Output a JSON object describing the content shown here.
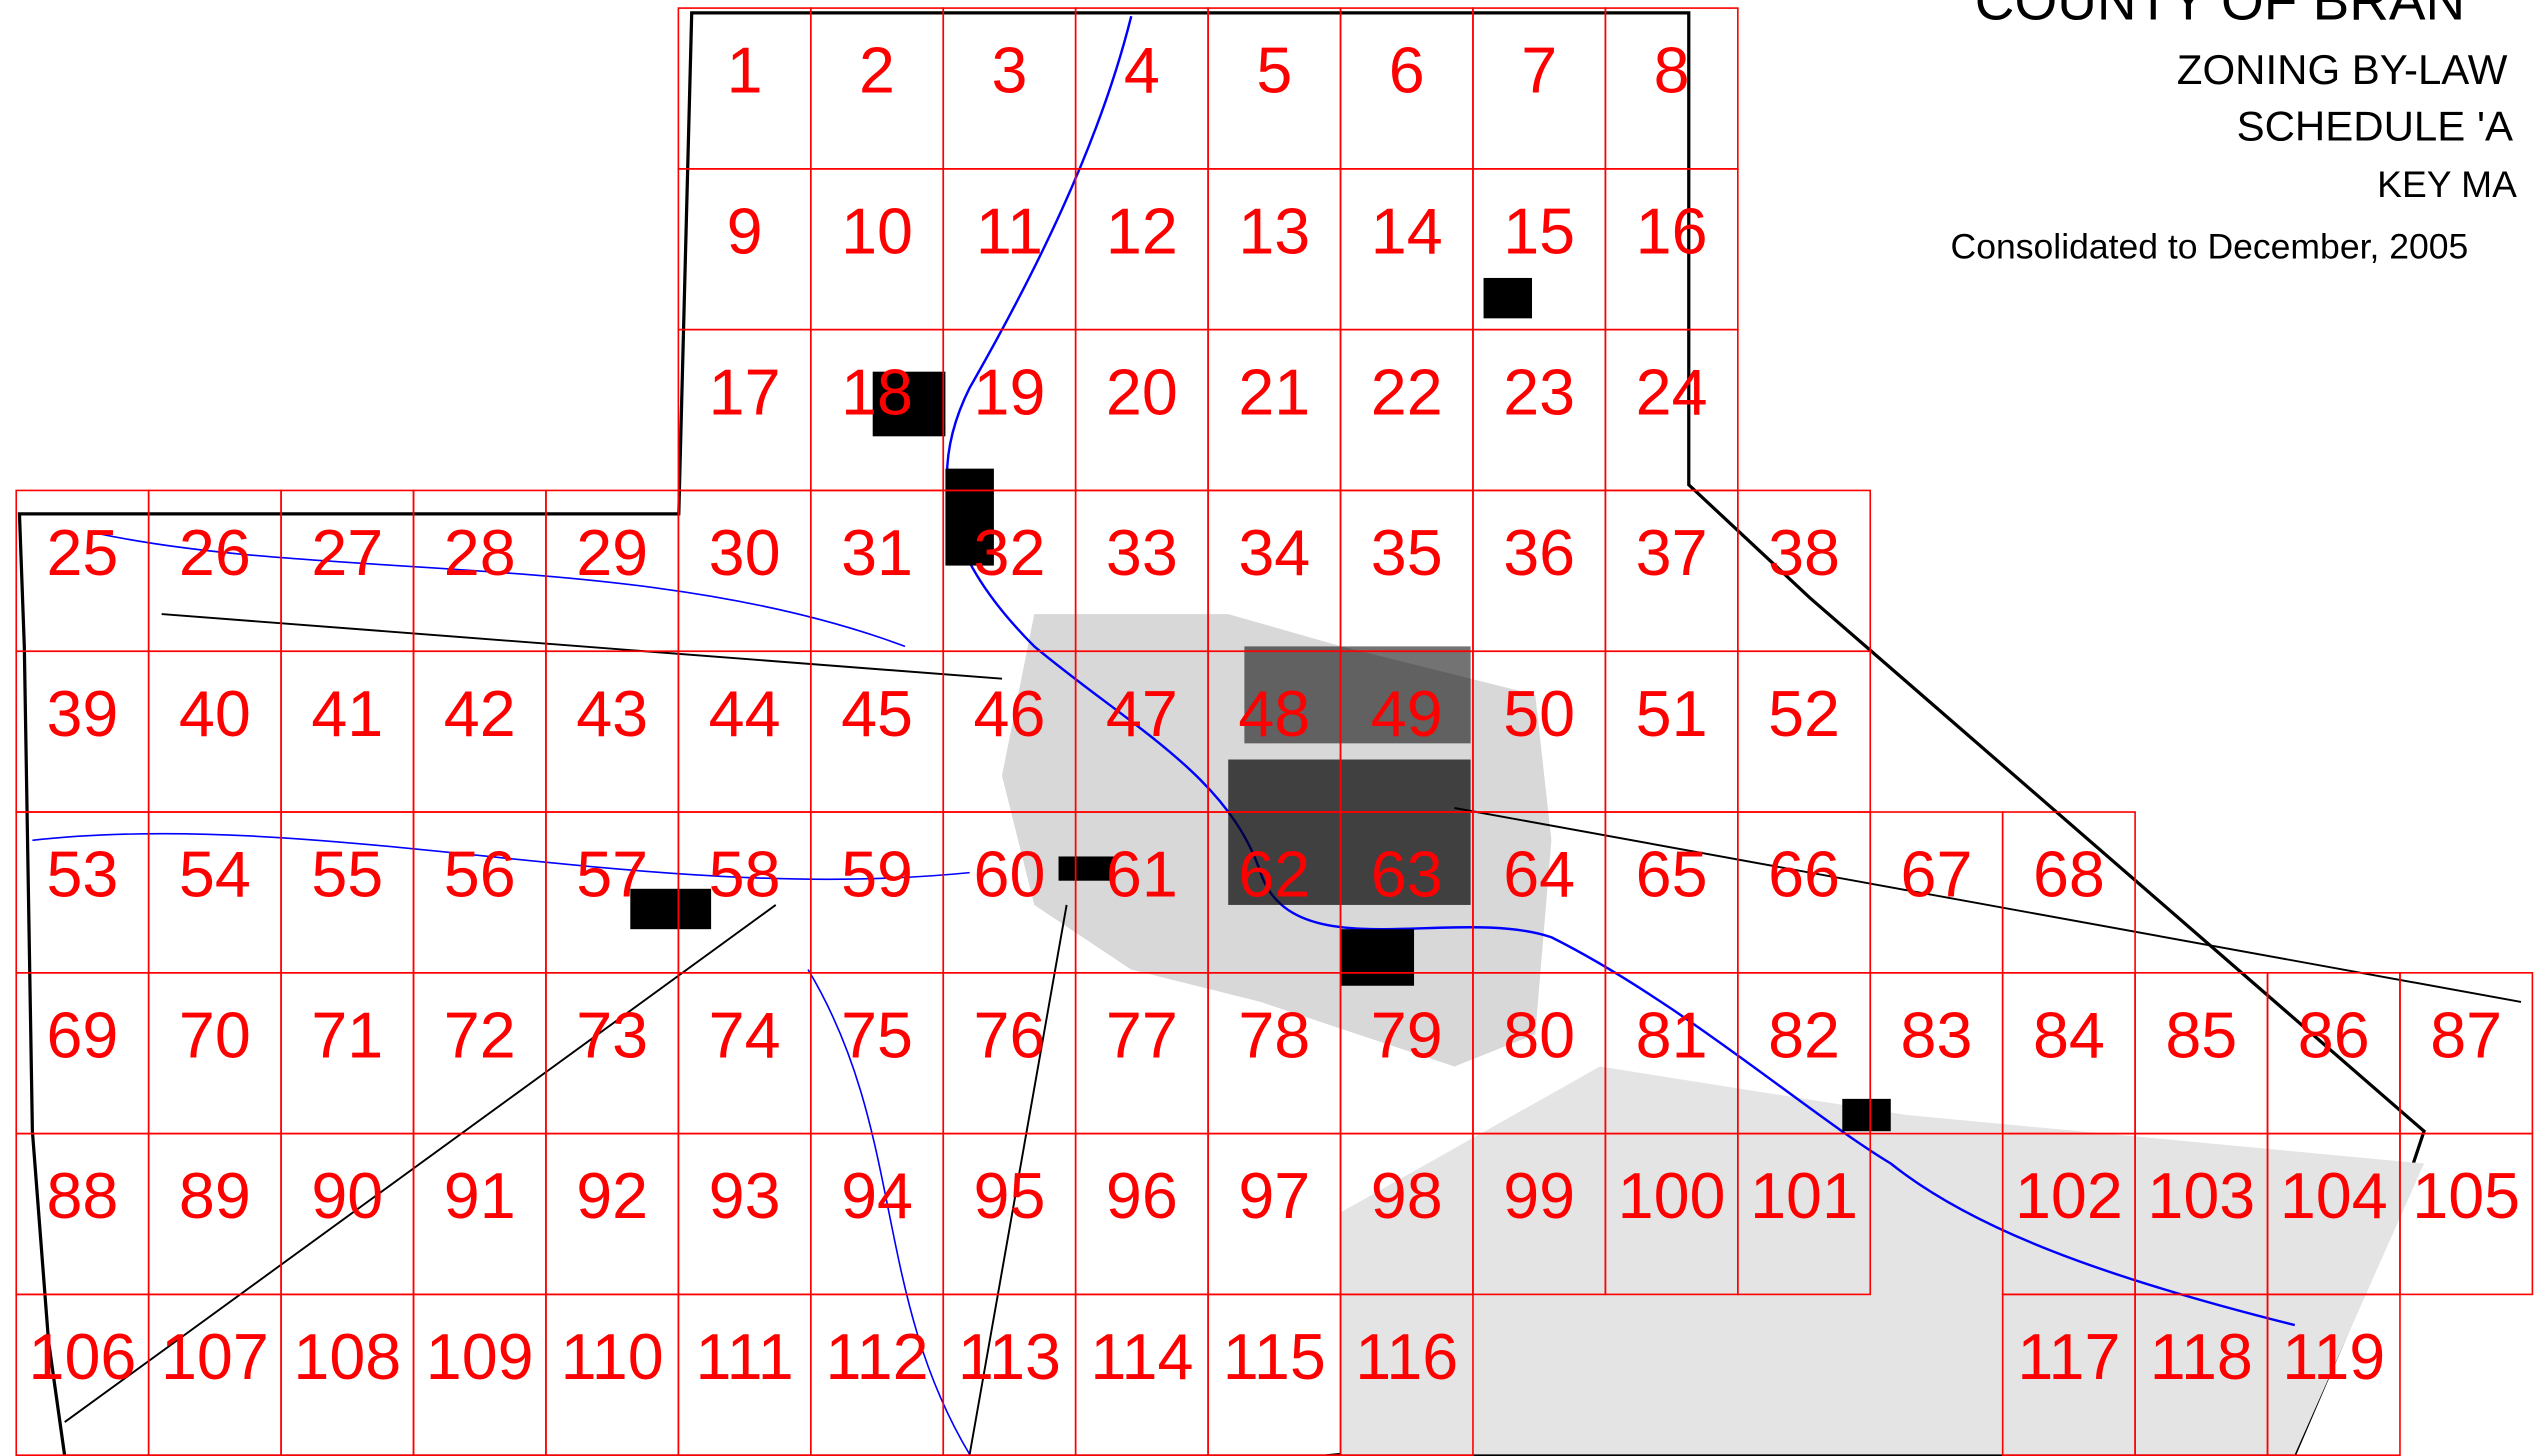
{
  "header": {
    "title": "COUNTY OF BRAN",
    "line2": "ZONING BY-LAW",
    "line3": "SCHEDULE 'A",
    "line4": "KEY MA",
    "consolidated": "Consolidated to December, 2005"
  },
  "sheets": [
    "1",
    "2",
    "3",
    "4",
    "5",
    "6",
    "7",
    "8",
    "9",
    "10",
    "11",
    "12",
    "13",
    "14",
    "15",
    "16",
    "17",
    "18",
    "19",
    "20",
    "21",
    "22",
    "23",
    "24",
    "25",
    "26",
    "27",
    "28",
    "29",
    "30",
    "31",
    "32",
    "33",
    "34",
    "35",
    "36",
    "37",
    "38",
    "39",
    "40",
    "41",
    "42",
    "43",
    "44",
    "45",
    "46",
    "47",
    "48",
    "49",
    "50",
    "51",
    "52",
    "53",
    "54",
    "55",
    "56",
    "57",
    "58",
    "59",
    "60",
    "61",
    "62",
    "63",
    "64",
    "65",
    "66",
    "67",
    "68",
    "69",
    "70",
    "71",
    "72",
    "73",
    "74",
    "75",
    "76",
    "77",
    "78",
    "79",
    "80",
    "81",
    "82",
    "83",
    "84",
    "85",
    "86",
    "87",
    "88",
    "89",
    "90",
    "91",
    "92",
    "93",
    "94",
    "95",
    "96",
    "97",
    "98",
    "99",
    "100",
    "101",
    "102",
    "103",
    "104",
    "105",
    "106",
    "107",
    "108",
    "109",
    "110",
    "111",
    "112",
    "113",
    "114",
    "115",
    "116",
    "117",
    "118",
    "119"
  ]
}
